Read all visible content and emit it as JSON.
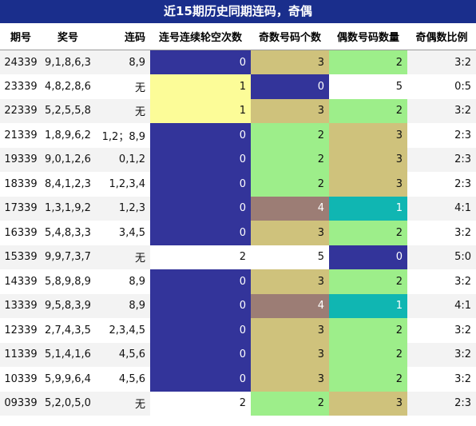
{
  "title": "近15期历史同期连码，奇偶",
  "columns": [
    "期号",
    "奖号",
    "连码",
    "连号连续轮空次数",
    "奇数号码个数",
    "偶数号码数量",
    "奇偶数比例"
  ],
  "colors": {
    "navy": "#33349a",
    "khaki": "#cfc27c",
    "green": "#9dee8a",
    "yellow": "#fcfc98",
    "mauve": "#9c7d75",
    "teal": "#10b6b2",
    "white": "#ffffff"
  },
  "rows": [
    {
      "period": "24339",
      "numbers": "9,1,8,6,3",
      "consec": "8,9",
      "miss": "0",
      "odd": "3",
      "even": "2",
      "ratio": "3:2",
      "miss_color": "navy",
      "odd_color": "khaki",
      "even_color": "green"
    },
    {
      "period": "23339",
      "numbers": "4,8,2,8,6",
      "consec": "无",
      "miss": "1",
      "odd": "0",
      "even": "5",
      "ratio": "0:5",
      "miss_color": "yellow",
      "odd_color": "navy",
      "even_color": "white"
    },
    {
      "period": "22339",
      "numbers": "5,2,5,5,8",
      "consec": "无",
      "miss": "1",
      "odd": "3",
      "even": "2",
      "ratio": "3:2",
      "miss_color": "yellow",
      "odd_color": "khaki",
      "even_color": "green"
    },
    {
      "period": "21339",
      "numbers": "1,8,9,6,2",
      "consec": "1,2；8,9",
      "miss": "0",
      "odd": "2",
      "even": "3",
      "ratio": "2:3",
      "miss_color": "navy",
      "odd_color": "green",
      "even_color": "khaki"
    },
    {
      "period": "19339",
      "numbers": "9,0,1,2,6",
      "consec": "0,1,2",
      "miss": "0",
      "odd": "2",
      "even": "3",
      "ratio": "2:3",
      "miss_color": "navy",
      "odd_color": "green",
      "even_color": "khaki"
    },
    {
      "period": "18339",
      "numbers": "8,4,1,2,3",
      "consec": "1,2,3,4",
      "miss": "0",
      "odd": "2",
      "even": "3",
      "ratio": "2:3",
      "miss_color": "navy",
      "odd_color": "green",
      "even_color": "khaki"
    },
    {
      "period": "17339",
      "numbers": "1,3,1,9,2",
      "consec": "1,2,3",
      "miss": "0",
      "odd": "4",
      "even": "1",
      "ratio": "4:1",
      "miss_color": "navy",
      "odd_color": "mauve",
      "even_color": "teal"
    },
    {
      "period": "16339",
      "numbers": "5,4,8,3,3",
      "consec": "3,4,5",
      "miss": "0",
      "odd": "3",
      "even": "2",
      "ratio": "3:2",
      "miss_color": "navy",
      "odd_color": "khaki",
      "even_color": "green"
    },
    {
      "period": "15339",
      "numbers": "9,9,7,3,7",
      "consec": "无",
      "miss": "2",
      "odd": "5",
      "even": "0",
      "ratio": "5:0",
      "miss_color": "white",
      "odd_color": "white",
      "even_color": "navy"
    },
    {
      "period": "14339",
      "numbers": "5,8,9,8,9",
      "consec": "8,9",
      "miss": "0",
      "odd": "3",
      "even": "2",
      "ratio": "3:2",
      "miss_color": "navy",
      "odd_color": "khaki",
      "even_color": "green"
    },
    {
      "period": "13339",
      "numbers": "9,5,8,3,9",
      "consec": "8,9",
      "miss": "0",
      "odd": "4",
      "even": "1",
      "ratio": "4:1",
      "miss_color": "navy",
      "odd_color": "mauve",
      "even_color": "teal"
    },
    {
      "period": "12339",
      "numbers": "2,7,4,3,5",
      "consec": "2,3,4,5",
      "miss": "0",
      "odd": "3",
      "even": "2",
      "ratio": "3:2",
      "miss_color": "navy",
      "odd_color": "khaki",
      "even_color": "green"
    },
    {
      "period": "11339",
      "numbers": "5,1,4,1,6",
      "consec": "4,5,6",
      "miss": "0",
      "odd": "3",
      "even": "2",
      "ratio": "3:2",
      "miss_color": "navy",
      "odd_color": "khaki",
      "even_color": "green"
    },
    {
      "period": "10339",
      "numbers": "5,9,9,6,4",
      "consec": "4,5,6",
      "miss": "0",
      "odd": "3",
      "even": "2",
      "ratio": "3:2",
      "miss_color": "navy",
      "odd_color": "khaki",
      "even_color": "green"
    },
    {
      "period": "09339",
      "numbers": "5,2,0,5,0",
      "consec": "无",
      "miss": "2",
      "odd": "2",
      "even": "3",
      "ratio": "2:3",
      "miss_color": "white",
      "odd_color": "green",
      "even_color": "khaki"
    }
  ]
}
